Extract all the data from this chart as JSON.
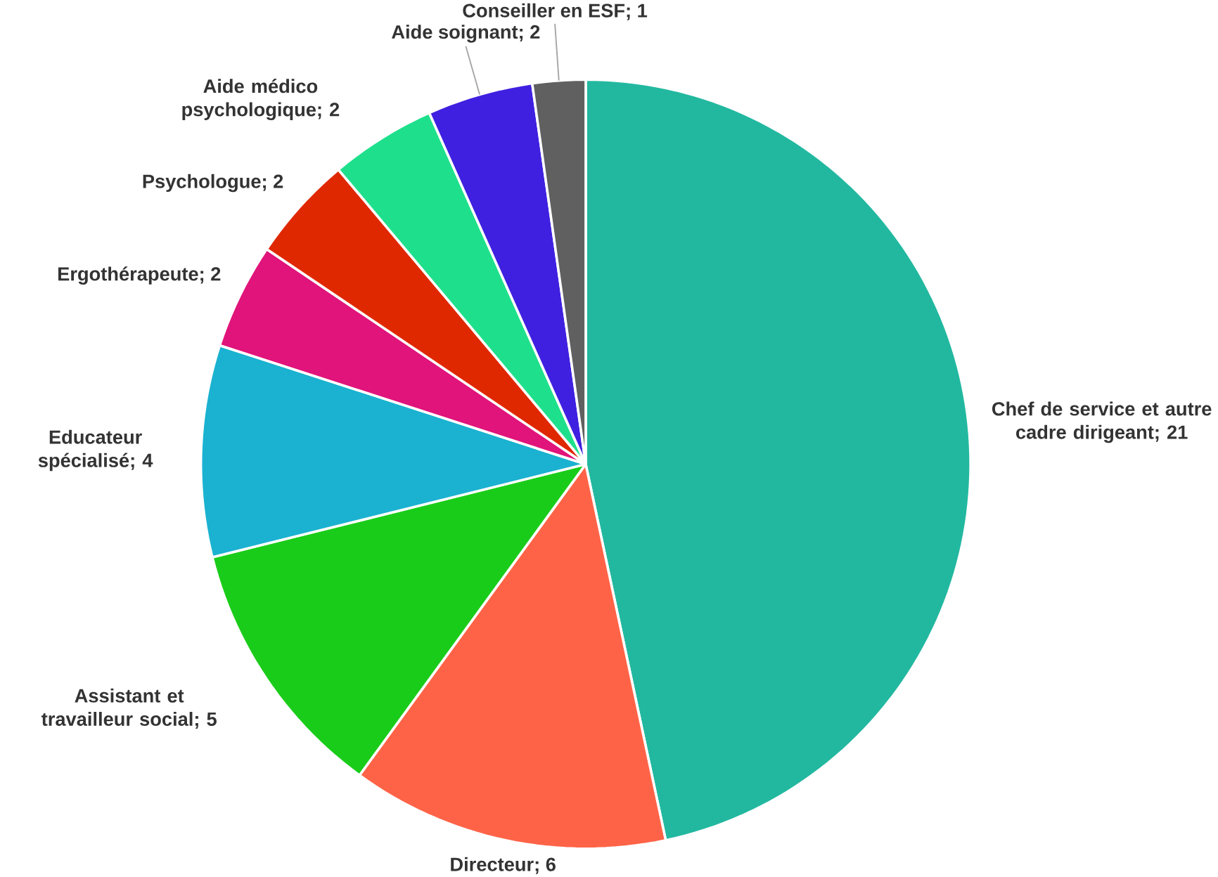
{
  "chart_data": {
    "type": "pie",
    "categories": [
      "Chef de service et autre cadre dirigeant",
      "Directeur",
      "Assistant et travailleur social",
      "Educateur spécialisé",
      "Ergothérapeute",
      "Psychologue",
      "Aide médico psychologique",
      "Aide soignant",
      "Conseiller en ESF"
    ],
    "values": [
      21,
      6,
      5,
      4,
      2,
      2,
      2,
      2,
      1
    ],
    "colors": [
      "#22b8a0",
      "#ff6347",
      "#1acc1a",
      "#1ab2d0",
      "#e0147a",
      "#e02800",
      "#1ee08c",
      "#4020e0",
      "#606060"
    ],
    "value_labels": [
      "; 21",
      "; 6",
      "; 5",
      "; 4",
      "; 2",
      "; 2",
      "; 2",
      "; 2",
      "; 1"
    ],
    "legend": false
  }
}
